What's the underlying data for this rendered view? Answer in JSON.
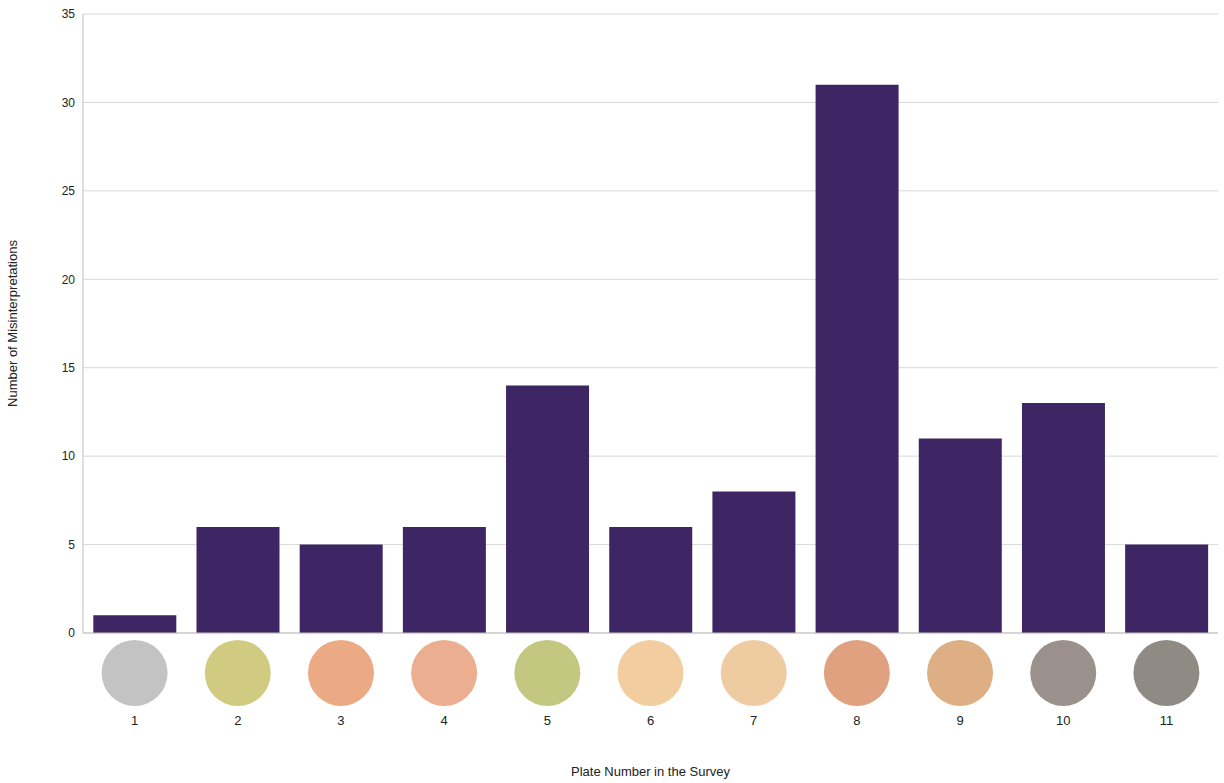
{
  "chart_data": {
    "type": "bar",
    "x_label": "Plate Number in the Survey",
    "y_label": "Number of Misinterpretations",
    "categories": [
      "1",
      "2",
      "3",
      "4",
      "5",
      "6",
      "7",
      "8",
      "9",
      "10",
      "11"
    ],
    "values": [
      1,
      6,
      5,
      6,
      14,
      6,
      8,
      31,
      11,
      13,
      5
    ],
    "color": "#3d2663",
    "ylim": [
      0,
      35
    ],
    "yticks": [
      0,
      5,
      10,
      15,
      20,
      25,
      30,
      35
    ],
    "grid": true
  }
}
